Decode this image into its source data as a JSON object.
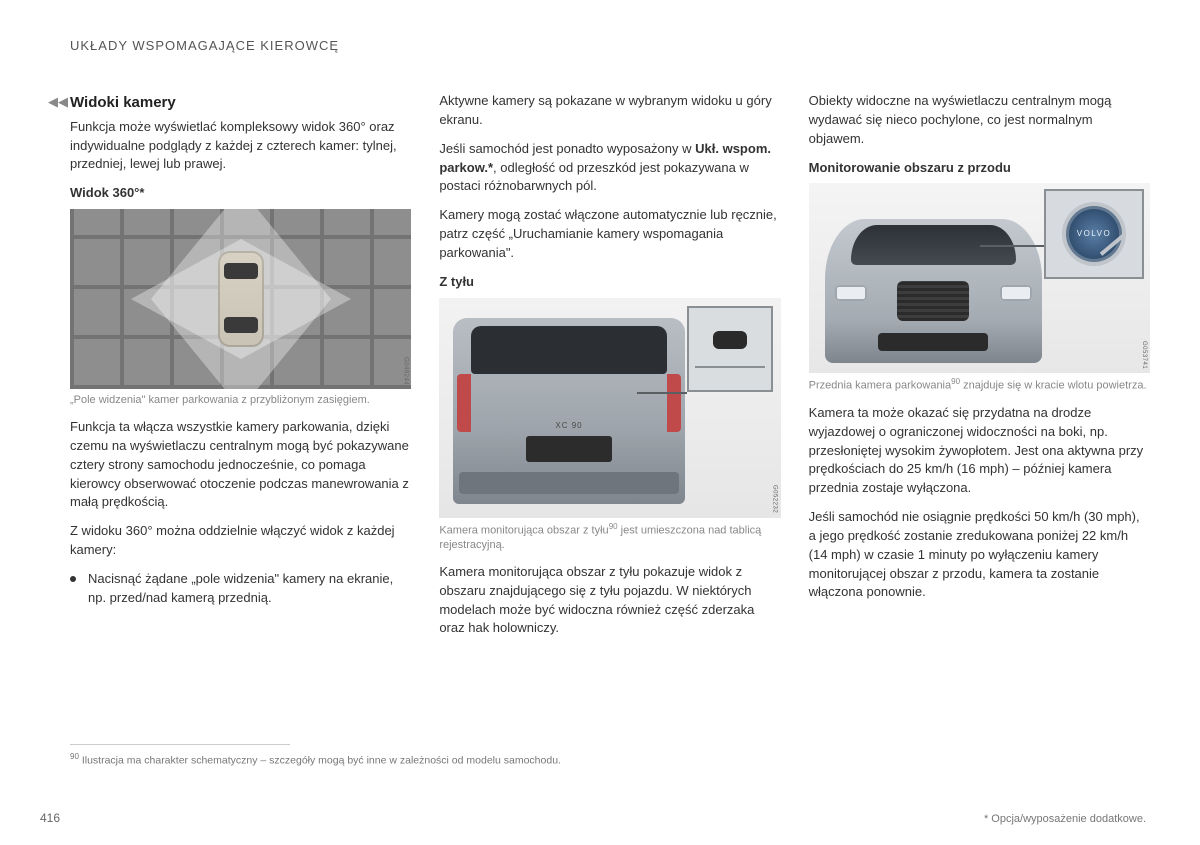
{
  "header": "UKŁADY WSPOMAGAJĄCE KIEROWCĘ",
  "continuation_marker": "◀◀",
  "col1": {
    "title": "Widoki kamery",
    "intro": "Funkcja może wyświetlać kompleksowy widok 360° oraz indywidualne podglądy z każdej z czterech kamer: tylnej, przedniej, lewej lub prawej.",
    "sub_360": "Widok 360°*",
    "fig360_code": "G049244",
    "caption_360": "„Pole widzenia\" kamer parkowania z przybliżonym zasięgiem.",
    "para1": "Funkcja ta włącza wszystkie kamery parkowania, dzięki czemu na wyświetlaczu centralnym mogą być pokazywane cztery strony samochodu jednocześnie, co pomaga kierowcy obserwować otoczenie podczas manewrowania z małą prędkością.",
    "para2": "Z widoku 360° można oddzielnie włączyć widok z każdej kamery:",
    "bullet1": "Nacisnąć żądane „pole widzenia\" kamery na ekranie, np. przed/nad kamerą przednią."
  },
  "col2": {
    "para_top1": "Aktywne kamery są pokazane w wybranym widoku u góry ekranu.",
    "para_top2a": "Jeśli samochód jest ponadto wyposażony w ",
    "para_top2_bold": "Ukł. wspom. parkow.*",
    "para_top2b": ", odległość od przeszkód jest pokazywana w postaci różnobarwnych pól.",
    "para_top3": "Kamery mogą zostać włączone automatycznie lub ręcznie, patrz część „Uruchamianie kamery wspomagania parkowania\".",
    "sub_rear": "Z tyłu",
    "rear_badge": "XC 90",
    "fig_rear_code": "G052232",
    "caption_rear_a": "Kamera monitorująca obszar z tyłu",
    "caption_rear_b": " jest umieszczona nad tablicą rejestracyjną.",
    "para_rear": "Kamera monitorująca obszar z tyłu pokazuje widok z obszaru znajdującego się z tyłu pojazdu. W niektórych modelach może być widoczna również część zderzaka oraz hak holowniczy."
  },
  "col3": {
    "para_top": "Obiekty widoczne na wyświetlaczu centralnym mogą wydawać się nieco pochylone, co jest normalnym objawem.",
    "sub_front": "Monitorowanie obszaru z przodu",
    "front_brand": "VOLVO",
    "fig_front_code": "G053741",
    "caption_front_a": "Przednia kamera parkowania",
    "caption_front_b": " znajduje się w kracie wlotu powietrza.",
    "para_front1": "Kamera ta może okazać się przydatna na drodze wyjazdowej o ograniczonej widoczności na boki, np. przesłoniętej wysokim żywopłotem. Jest ona aktywna przy prędkościach do 25 km/h (16 mph) – później kamera przednia zostaje wyłączona.",
    "para_front2": "Jeśli samochód nie osiągnie prędkości 50 km/h (30 mph), a jego prędkość zostanie zredukowana poniżej 22 km/h (14 mph) w czasie 1 minuty po wyłączeniu kamery monitorującej obszar z przodu, kamera ta zostanie włączona ponownie."
  },
  "footnote": {
    "ref": "90",
    "text": " Ilustracja ma charakter schematyczny – szczegóły mogą być inne w zależności od modelu samochodu."
  },
  "page_number": "416",
  "option_note": "* Opcja/wyposażenie dodatkowe."
}
